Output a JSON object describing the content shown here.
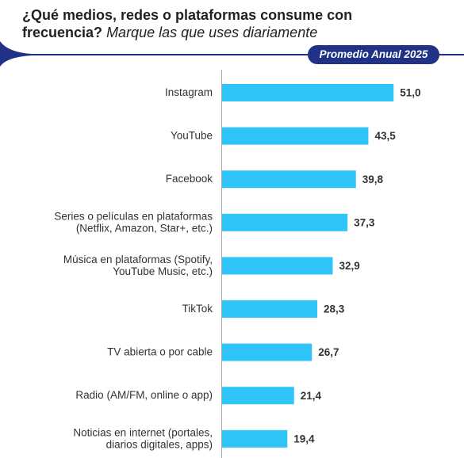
{
  "chart_data": {
    "type": "bar",
    "orientation": "horizontal",
    "title": "¿Qué medios, redes o plataformas consume con frecuencia?",
    "subtitle": "Marque las que uses diariamente",
    "badge": "Promedio Anual 2025",
    "categories": [
      "Instagram",
      "YouTube",
      "Facebook",
      "Series o películas en plataformas\n(Netflix, Amazon, Star+, etc.)",
      "Música en plataformas (Spotify,\nYouTube Music, etc.)",
      "TikTok",
      "TV abierta o por cable",
      "Radio (AM/FM, online o app)",
      "Noticias en internet (portales,\ndiarios digitales, apps)"
    ],
    "values": [
      51.0,
      43.5,
      39.8,
      37.3,
      32.9,
      28.3,
      26.7,
      21.4,
      19.4
    ],
    "value_labels": [
      "51,0",
      "43,5",
      "39,8",
      "37,3",
      "32,9",
      "28,3",
      "26,7",
      "21,4",
      "19,4"
    ],
    "color": "#2ec4f7"
  }
}
